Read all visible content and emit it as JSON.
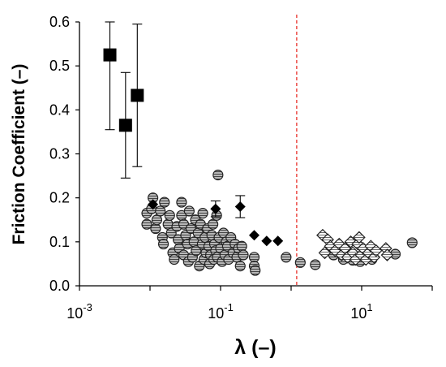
{
  "chart_data": {
    "type": "scatter",
    "title": "",
    "xlabel": "λ (–)",
    "ylabel": "Friction Coefficient (–)",
    "x_scale": "log",
    "xlim": [
      0.001,
      100
    ],
    "ylim": [
      0,
      0.6
    ],
    "x_ticks": [
      {
        "value": 0.001,
        "base": "10",
        "exp": "-3"
      },
      {
        "value": 0.1,
        "base": "10",
        "exp": "-1"
      },
      {
        "value": 10,
        "base": "10",
        "exp": "1"
      }
    ],
    "y_ticks": [
      "0.0",
      "0.1",
      "0.2",
      "0.3",
      "0.4",
      "0.5",
      "0.6"
    ],
    "grid": false,
    "legend": "none",
    "reference_line": {
      "x": 1.2,
      "style": "dashed",
      "color": "#e8322b"
    },
    "series": [
      {
        "marker": "square-filled",
        "color": "#000000",
        "points": [
          {
            "x": 0.0027,
            "y": 0.525,
            "err": 0.17
          },
          {
            "x": 0.0045,
            "y": 0.365,
            "err": 0.12
          },
          {
            "x": 0.0066,
            "y": 0.433,
            "err": 0.162
          }
        ]
      },
      {
        "marker": "diamond-filled",
        "color": "#000000",
        "points": [
          {
            "x": 0.011,
            "y": 0.185,
            "err": 0
          },
          {
            "x": 0.085,
            "y": 0.175,
            "err": 0.018
          },
          {
            "x": 0.19,
            "y": 0.18,
            "err": 0.025
          },
          {
            "x": 0.3,
            "y": 0.115,
            "err": 0
          },
          {
            "x": 0.45,
            "y": 0.102,
            "err": 0
          },
          {
            "x": 0.65,
            "y": 0.102,
            "err": 0
          }
        ]
      },
      {
        "marker": "circle-hatched",
        "color": "#808080",
        "points": [
          {
            "x": 0.009,
            "y": 0.165
          },
          {
            "x": 0.009,
            "y": 0.14
          },
          {
            "x": 0.011,
            "y": 0.2
          },
          {
            "x": 0.0105,
            "y": 0.175
          },
          {
            "x": 0.012,
            "y": 0.13
          },
          {
            "x": 0.0125,
            "y": 0.15
          },
          {
            "x": 0.014,
            "y": 0.17
          },
          {
            "x": 0.015,
            "y": 0.11
          },
          {
            "x": 0.016,
            "y": 0.19
          },
          {
            "x": 0.0155,
            "y": 0.095
          },
          {
            "x": 0.018,
            "y": 0.14
          },
          {
            "x": 0.019,
            "y": 0.16
          },
          {
            "x": 0.02,
            "y": 0.12
          },
          {
            "x": 0.021,
            "y": 0.075
          },
          {
            "x": 0.022,
            "y": 0.06
          },
          {
            "x": 0.024,
            "y": 0.135
          },
          {
            "x": 0.025,
            "y": 0.105
          },
          {
            "x": 0.026,
            "y": 0.085
          },
          {
            "x": 0.028,
            "y": 0.16
          },
          {
            "x": 0.028,
            "y": 0.19
          },
          {
            "x": 0.03,
            "y": 0.14
          },
          {
            "x": 0.03,
            "y": 0.07
          },
          {
            "x": 0.032,
            "y": 0.115
          },
          {
            "x": 0.034,
            "y": 0.095
          },
          {
            "x": 0.035,
            "y": 0.055
          },
          {
            "x": 0.036,
            "y": 0.17
          },
          {
            "x": 0.038,
            "y": 0.13
          },
          {
            "x": 0.04,
            "y": 0.065
          },
          {
            "x": 0.042,
            "y": 0.1
          },
          {
            "x": 0.044,
            "y": 0.15
          },
          {
            "x": 0.045,
            "y": 0.08
          },
          {
            "x": 0.048,
            "y": 0.12
          },
          {
            "x": 0.05,
            "y": 0.045
          },
          {
            "x": 0.052,
            "y": 0.14
          },
          {
            "x": 0.055,
            "y": 0.095
          },
          {
            "x": 0.056,
            "y": 0.165
          },
          {
            "x": 0.058,
            "y": 0.06
          },
          {
            "x": 0.06,
            "y": 0.11
          },
          {
            "x": 0.062,
            "y": 0.075
          },
          {
            "x": 0.065,
            "y": 0.13
          },
          {
            "x": 0.068,
            "y": 0.09
          },
          {
            "x": 0.07,
            "y": 0.05
          },
          {
            "x": 0.072,
            "y": 0.07
          },
          {
            "x": 0.075,
            "y": 0.115
          },
          {
            "x": 0.078,
            "y": 0.14
          },
          {
            "x": 0.08,
            "y": 0.06
          },
          {
            "x": 0.082,
            "y": 0.095
          },
          {
            "x": 0.085,
            "y": 0.08
          },
          {
            "x": 0.088,
            "y": 0.16
          },
          {
            "x": 0.09,
            "y": 0.065
          },
          {
            "x": 0.092,
            "y": 0.252
          },
          {
            "x": 0.095,
            "y": 0.11
          },
          {
            "x": 0.1,
            "y": 0.085
          },
          {
            "x": 0.105,
            "y": 0.055
          },
          {
            "x": 0.11,
            "y": 0.12
          },
          {
            "x": 0.115,
            "y": 0.07
          },
          {
            "x": 0.12,
            "y": 0.1
          },
          {
            "x": 0.125,
            "y": 0.09
          },
          {
            "x": 0.13,
            "y": 0.06
          },
          {
            "x": 0.14,
            "y": 0.11
          },
          {
            "x": 0.15,
            "y": 0.075
          },
          {
            "x": 0.16,
            "y": 0.095
          },
          {
            "x": 0.17,
            "y": 0.065
          },
          {
            "x": 0.18,
            "y": 0.085
          },
          {
            "x": 0.19,
            "y": 0.045
          },
          {
            "x": 0.2,
            "y": 0.09
          },
          {
            "x": 0.21,
            "y": 0.07
          },
          {
            "x": 0.3,
            "y": 0.065
          },
          {
            "x": 0.3,
            "y": 0.045
          },
          {
            "x": 0.31,
            "y": 0.035
          },
          {
            "x": 0.85,
            "y": 0.065
          },
          {
            "x": 1.35,
            "y": 0.053
          },
          {
            "x": 2.2,
            "y": 0.048
          },
          {
            "x": 4.0,
            "y": 0.07
          },
          {
            "x": 5.5,
            "y": 0.06
          },
          {
            "x": 7.5,
            "y": 0.058
          },
          {
            "x": 9.5,
            "y": 0.055
          },
          {
            "x": 14.0,
            "y": 0.06
          },
          {
            "x": 30.0,
            "y": 0.072
          },
          {
            "x": 52.0,
            "y": 0.098
          }
        ]
      },
      {
        "marker": "diamond-hatched",
        "color": "#ffffff",
        "points": [
          {
            "x": 2.8,
            "y": 0.115
          },
          {
            "x": 3.3,
            "y": 0.105
          },
          {
            "x": 3.0,
            "y": 0.075
          },
          {
            "x": 3.6,
            "y": 0.09
          },
          {
            "x": 4.2,
            "y": 0.08
          },
          {
            "x": 4.8,
            "y": 0.095
          },
          {
            "x": 5.2,
            "y": 0.07
          },
          {
            "x": 5.8,
            "y": 0.085
          },
          {
            "x": 6.3,
            "y": 0.065
          },
          {
            "x": 7.0,
            "y": 0.1
          },
          {
            "x": 7.5,
            "y": 0.075
          },
          {
            "x": 8.2,
            "y": 0.06
          },
          {
            "x": 8.8,
            "y": 0.095
          },
          {
            "x": 9.2,
            "y": 0.11
          },
          {
            "x": 9.8,
            "y": 0.07
          },
          {
            "x": 10.5,
            "y": 0.085
          },
          {
            "x": 11.5,
            "y": 0.06
          },
          {
            "x": 12.5,
            "y": 0.075
          },
          {
            "x": 13.5,
            "y": 0.09
          },
          {
            "x": 15.0,
            "y": 0.065
          },
          {
            "x": 16.0,
            "y": 0.08
          },
          {
            "x": 22.0,
            "y": 0.085
          },
          {
            "x": 23.0,
            "y": 0.07
          }
        ]
      }
    ]
  }
}
